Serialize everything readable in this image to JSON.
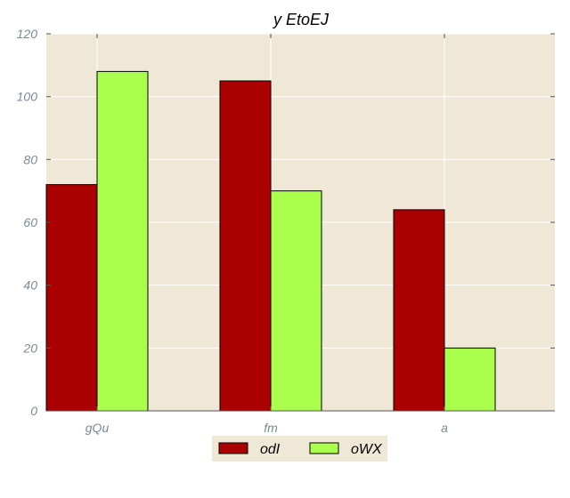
{
  "chart_data": {
    "type": "bar",
    "title": "y EtoEJ",
    "xlabel": "",
    "ylabel": "",
    "categories": [
      "gQu",
      "fm",
      "a"
    ],
    "series": [
      {
        "name": "odI",
        "values": [
          72,
          105,
          64
        ],
        "color": "#aa0000"
      },
      {
        "name": "oWX",
        "values": [
          108,
          70,
          20
        ],
        "color": "#aaff4c"
      }
    ],
    "ylim": [
      0,
      120
    ],
    "yticks": [
      0,
      20,
      40,
      60,
      80,
      100,
      120
    ],
    "grid": true,
    "legend_position": "bottom-center",
    "background_color": "#efe8d6"
  }
}
